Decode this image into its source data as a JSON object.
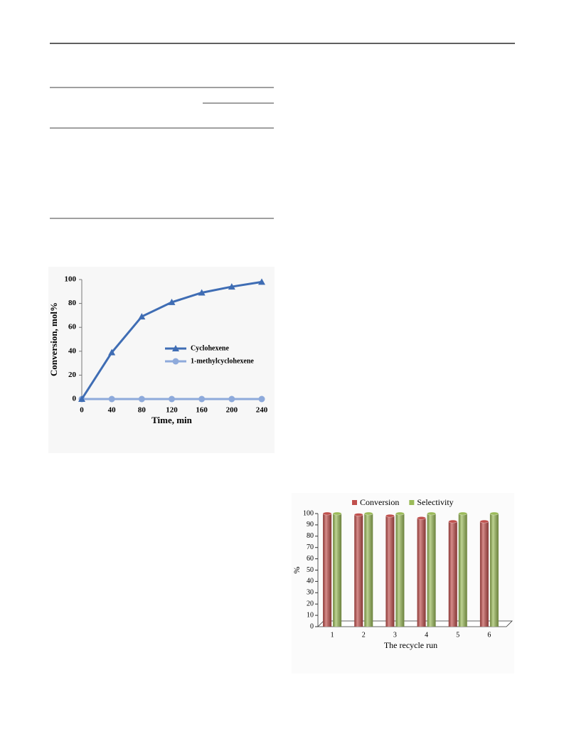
{
  "chart_data": [
    {
      "type": "line",
      "x_label": "Time, min",
      "y_label": "Conversion, mol%",
      "x": [
        0,
        40,
        80,
        120,
        160,
        200,
        240
      ],
      "xlim": [
        0,
        240
      ],
      "xticks": [
        0,
        40,
        80,
        120,
        160,
        200,
        240
      ],
      "ylim": [
        0,
        100
      ],
      "yticks": [
        0,
        20,
        40,
        60,
        80,
        100
      ],
      "series": [
        {
          "name": "Cyclohexene",
          "color": "#3f6db4",
          "marker": "triangle",
          "values": [
            0,
            39,
            69,
            81,
            89,
            94,
            98
          ]
        },
        {
          "name": "1-methylcyclohexene",
          "color": "#8eaadb",
          "marker": "circle",
          "values": [
            0,
            0,
            0,
            0,
            0,
            0,
            0
          ]
        }
      ]
    },
    {
      "type": "bar",
      "x_label": "The recycle run",
      "y_label": "%",
      "categories": [
        "1",
        "2",
        "3",
        "4",
        "5",
        "6"
      ],
      "ylim": [
        0,
        100
      ],
      "yticks": [
        0,
        10,
        20,
        30,
        40,
        50,
        60,
        70,
        80,
        90,
        100
      ],
      "series": [
        {
          "name": "Conversion",
          "color": "#c0504d",
          "values": [
            100,
            99,
            98,
            96,
            93,
            93
          ]
        },
        {
          "name": "Selectivity",
          "color": "#9bbb59",
          "values": [
            100,
            100,
            100,
            100,
            100,
            100
          ]
        }
      ]
    }
  ]
}
